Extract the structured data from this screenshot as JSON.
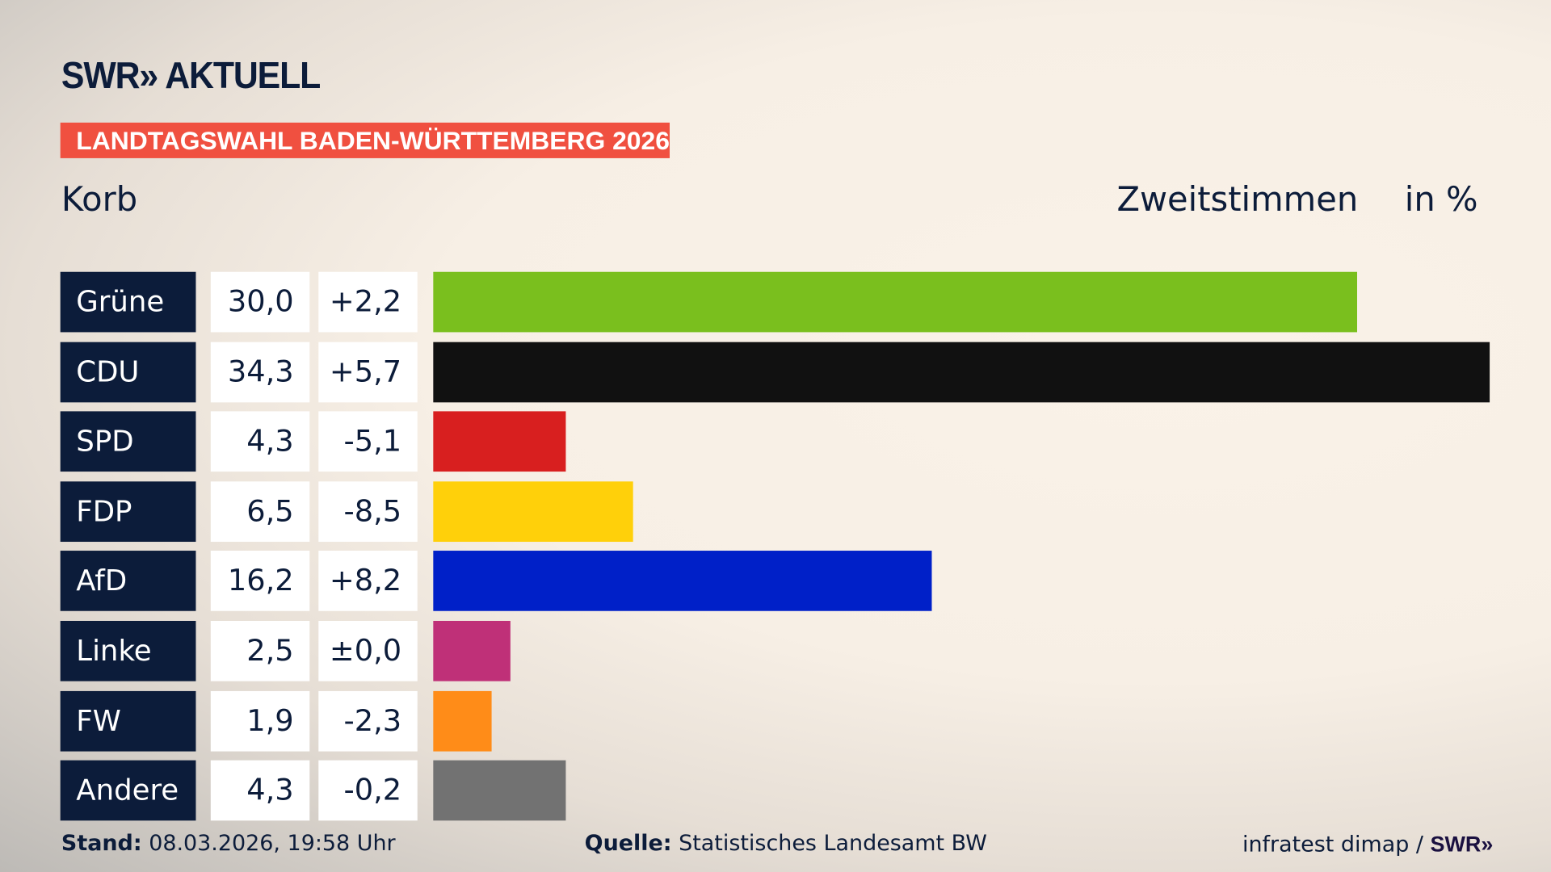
{
  "header": {
    "logo": "SWR» AKTUELL",
    "banner": "LANDTAGSWAHL BADEN-WÜRTTEMBERG 2026",
    "region": "Korb",
    "vote_type": "Zweitstimmen",
    "unit": "in %"
  },
  "chart_data": {
    "type": "bar",
    "orientation": "horizontal",
    "categories": [
      "Grüne",
      "CDU",
      "SPD",
      "FDP",
      "AfD",
      "Linke",
      "FW",
      "Andere"
    ],
    "values": [
      30.0,
      34.3,
      4.3,
      6.5,
      16.2,
      2.5,
      1.9,
      4.3
    ],
    "value_labels": [
      "30,0",
      "34,3",
      "4,3",
      "6,5",
      "16,2",
      "2,5",
      "1,9",
      "4,3"
    ],
    "change_labels": [
      "+2,2",
      "+5,7",
      "-5,1",
      "-8,5",
      "+8,2",
      "±0,0",
      "-2,3",
      "-0,2"
    ],
    "changes": [
      2.2,
      5.7,
      -5.1,
      -8.5,
      8.2,
      0.0,
      -2.3,
      -0.2
    ],
    "colors": [
      "#7abf1e",
      "#111111",
      "#d81f1f",
      "#ffd00a",
      "#0020c8",
      "#bf3078",
      "#ff8c18",
      "#727272"
    ],
    "xlim": [
      0,
      34.3
    ],
    "grid": false
  },
  "footer": {
    "stand_label": "Stand:",
    "stand_value": "08.03.2026, 19:58 Uhr",
    "source_label": "Quelle:",
    "source_value": "Statistisches Landesamt BW",
    "credit": "infratest dimap /",
    "credit_logo": "SWR»"
  }
}
